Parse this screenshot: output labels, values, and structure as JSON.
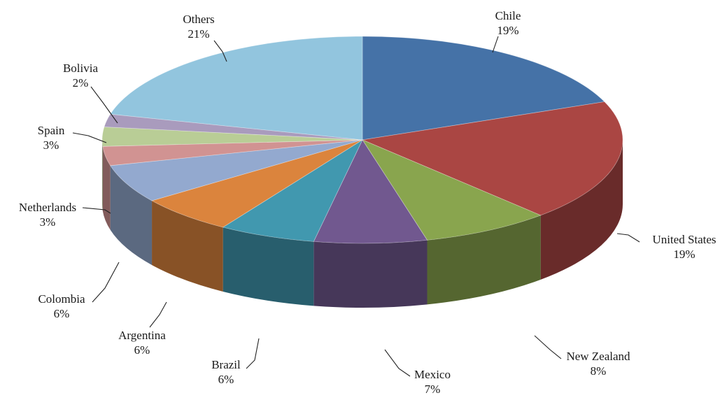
{
  "chart_data": {
    "type": "pie",
    "style": "3d",
    "title": "",
    "slices": [
      {
        "label": "Chile",
        "percent": 19,
        "percent_label": "19%",
        "color": "#4572A7"
      },
      {
        "label": "United States",
        "percent": 19,
        "percent_label": "19%",
        "color": "#AA4643"
      },
      {
        "label": "New Zealand",
        "percent": 8,
        "percent_label": "8%",
        "color": "#89A54E"
      },
      {
        "label": "Mexico",
        "percent": 7,
        "percent_label": "7%",
        "color": "#71588F"
      },
      {
        "label": "Brazil",
        "percent": 6,
        "percent_label": "6%",
        "color": "#4198AF"
      },
      {
        "label": "Argentina",
        "percent": 6,
        "percent_label": "6%",
        "color": "#DB843D"
      },
      {
        "label": "Colombia",
        "percent": 6,
        "percent_label": "6%",
        "color": "#93A9CF"
      },
      {
        "label": "Netherlands",
        "percent": 3,
        "percent_label": "3%",
        "color": "#D19392"
      },
      {
        "label": "Spain",
        "percent": 3,
        "percent_label": "3%",
        "color": "#B9CD96"
      },
      {
        "label": "Bolivia",
        "percent": 2,
        "percent_label": "2%",
        "color": "#A99BBD"
      },
      {
        "label": "Others",
        "percent": 21,
        "percent_label": "21%",
        "color": "#92C5DE"
      }
    ]
  }
}
